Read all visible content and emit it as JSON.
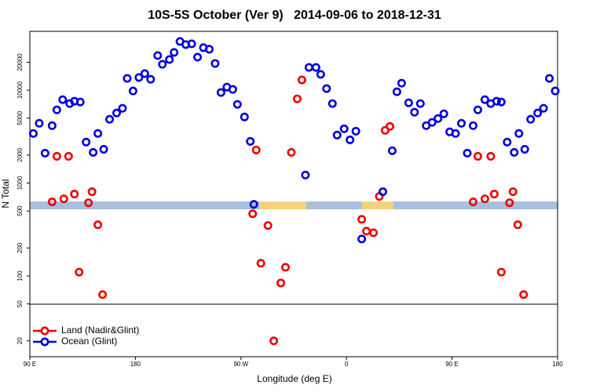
{
  "chart_data": {
    "type": "scatter",
    "title": "10S-5S October (Ver 9)   2014-09-06 to 2018-12-31",
    "x_label": "Longitude (deg E)",
    "y_label": "N Total",
    "log_y": true,
    "legend": "lower-left",
    "xlim": [
      90,
      540
    ],
    "xticks": [
      {
        "value": 90,
        "label": "90 E"
      },
      {
        "value": 180,
        "label": "180"
      },
      {
        "value": 270,
        "label": "90 W"
      },
      {
        "value": 360,
        "label": "0"
      },
      {
        "value": 450,
        "label": "90 E"
      },
      {
        "value": 540,
        "label": "180"
      }
    ],
    "ylim": [
      13.5,
      43000
    ],
    "yticks": [
      20,
      50,
      100,
      200,
      500,
      1000,
      2000,
      5000,
      10000,
      20000
    ],
    "series": [
      {
        "name": "Land (Nadir&Glint)",
        "color": "#ee0000",
        "x": [
          109,
          113,
          119,
          123,
          128,
          132,
          140,
          143,
          148,
          152,
          280,
          283,
          287,
          293,
          298,
          304,
          308,
          313,
          318,
          322,
          373,
          377,
          383,
          388,
          393,
          397,
          468,
          472,
          478,
          483,
          486,
          492,
          499,
          502,
          506,
          511
        ],
        "values": [
          627,
          1940,
          677,
          1940,
          761,
          110,
          614,
          807,
          356,
          63,
          467,
          2270,
          137,
          349,
          20,
          84,
          124,
          2140,
          8070,
          12900,
          407,
          304,
          292,
          718,
          3700,
          4070,
          627,
          1940,
          677,
          1940,
          761,
          110,
          614,
          807,
          356,
          63
        ]
      },
      {
        "name": "Ocean (Glint)",
        "color": "#0000dd",
        "x": [
          93,
          98,
          103,
          109,
          113,
          118,
          124,
          128,
          133,
          138,
          144,
          148,
          153,
          158,
          164,
          169,
          173,
          178,
          183,
          188,
          193,
          199,
          203,
          209,
          213,
          218,
          223,
          228,
          233,
          238,
          243,
          248,
          253,
          258,
          263,
          267,
          273,
          278,
          281,
          325,
          328,
          334,
          338,
          343,
          348,
          352,
          358,
          363,
          368,
          373,
          391,
          399,
          403,
          407,
          413,
          418,
          423,
          428,
          433,
          438,
          443,
          448,
          453,
          458,
          463,
          468,
          472,
          478,
          483,
          488,
          492,
          497,
          503,
          507,
          512,
          517,
          523,
          528,
          533,
          538
        ],
        "values": [
          3420,
          4400,
          2100,
          4150,
          6140,
          7910,
          7180,
          7610,
          7460,
          2760,
          2140,
          3420,
          2310,
          4860,
          5680,
          6380,
          13400,
          9810,
          13700,
          15100,
          13100,
          23600,
          19000,
          21400,
          25500,
          33500,
          31000,
          31600,
          22700,
          28700,
          27600,
          19400,
          9440,
          10800,
          10200,
          7040,
          5150,
          2810,
          590,
          1220,
          17600,
          17600,
          14800,
          10400,
          7180,
          3290,
          3840,
          2920,
          3620,
          250,
          807,
          2230,
          9620,
          11900,
          7320,
          5790,
          7180,
          4150,
          4500,
          4950,
          5570,
          3560,
          3420,
          4400,
          2100,
          4150,
          6140,
          7910,
          7180,
          7610,
          7460,
          2760,
          2140,
          3420,
          2310,
          4860,
          5680,
          6380,
          13400,
          9810
        ]
      }
    ]
  }
}
